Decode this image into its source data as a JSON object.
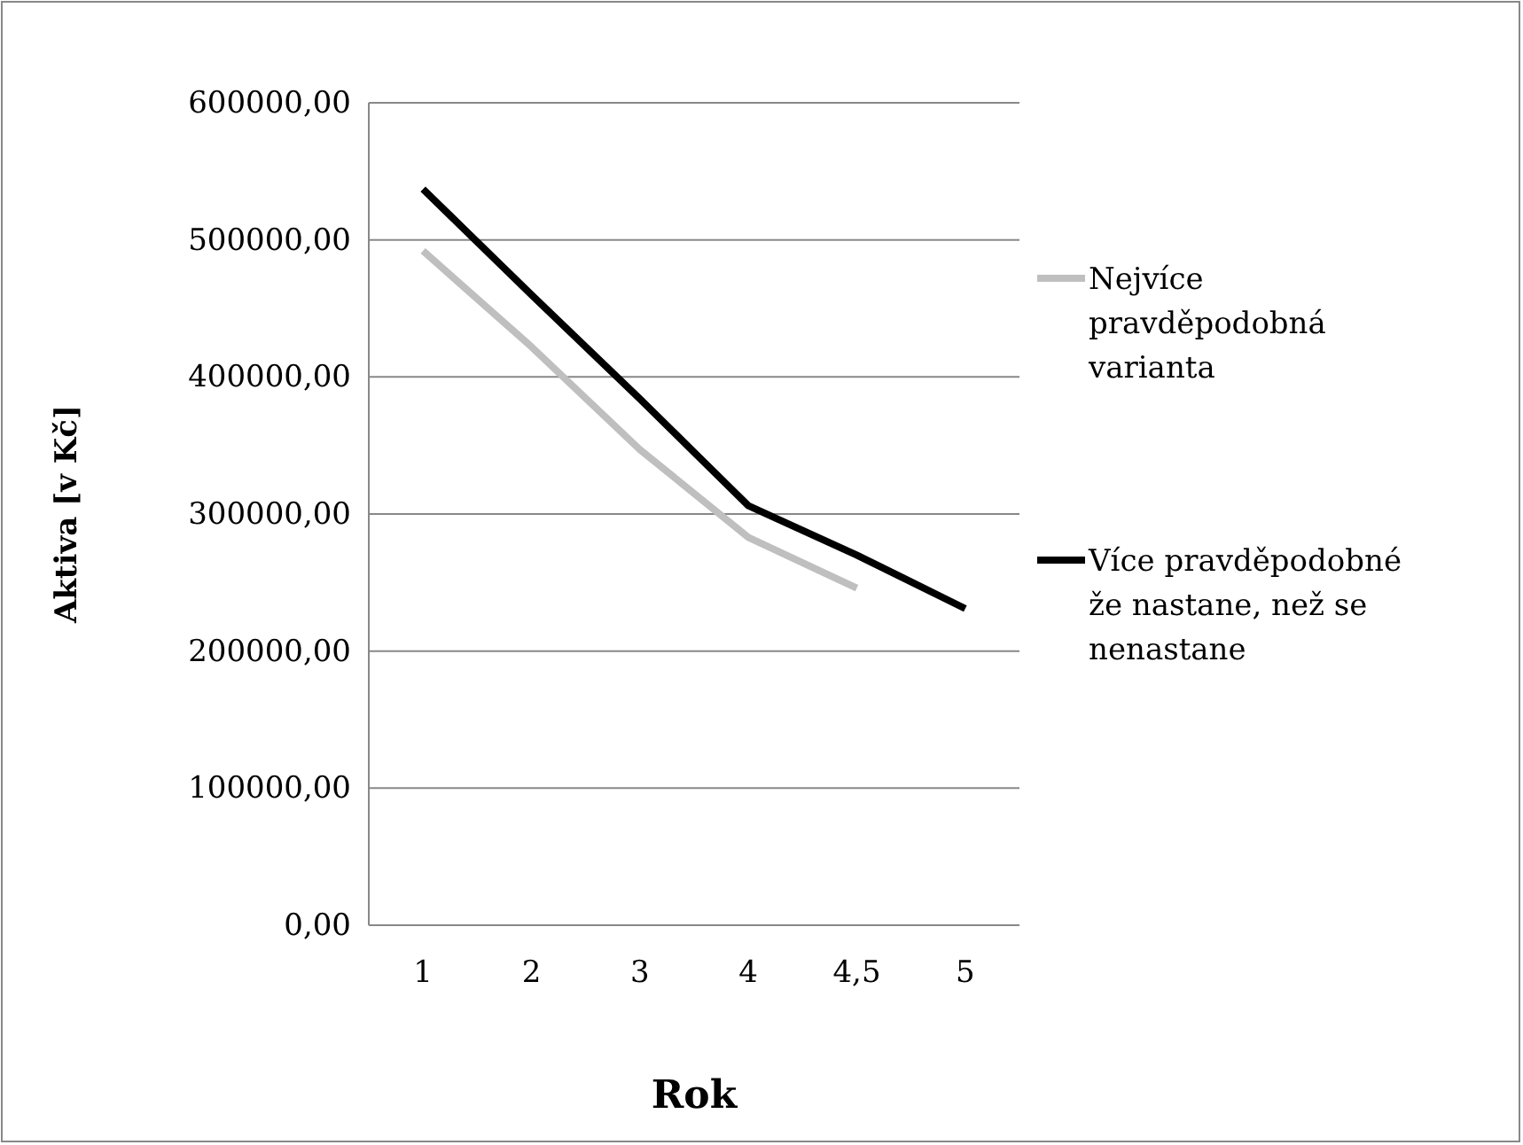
{
  "chart_data": {
    "type": "line",
    "xlabel": "Rok",
    "ylabel": "Aktiva [v Kč]",
    "categories": [
      "1",
      "2",
      "3",
      "4",
      "4,5",
      "5"
    ],
    "series": [
      {
        "name": "Nejvíce pravděpodobná varianta",
        "color": "#bfbfbf",
        "values": [
          492000,
          422000,
          347000,
          283000,
          246000,
          null
        ]
      },
      {
        "name": "Více pravděpodobné že nastane, než se nenastane",
        "color": "#000000",
        "values": [
          537000,
          460000,
          384000,
          306000,
          270000,
          231000
        ]
      }
    ],
    "ylim": [
      0,
      600000
    ],
    "yticks": [
      {
        "value": 0,
        "label": "0,00"
      },
      {
        "value": 100000,
        "label": "100000,00"
      },
      {
        "value": 200000,
        "label": "200000,00"
      },
      {
        "value": 300000,
        "label": "300000,00"
      },
      {
        "value": 400000,
        "label": "400000,00"
      },
      {
        "value": 500000,
        "label": "500000,00"
      },
      {
        "value": 600000,
        "label": "600000,00"
      }
    ],
    "grid": "y",
    "legend": "right",
    "marker": "none",
    "line_style": "solid"
  }
}
